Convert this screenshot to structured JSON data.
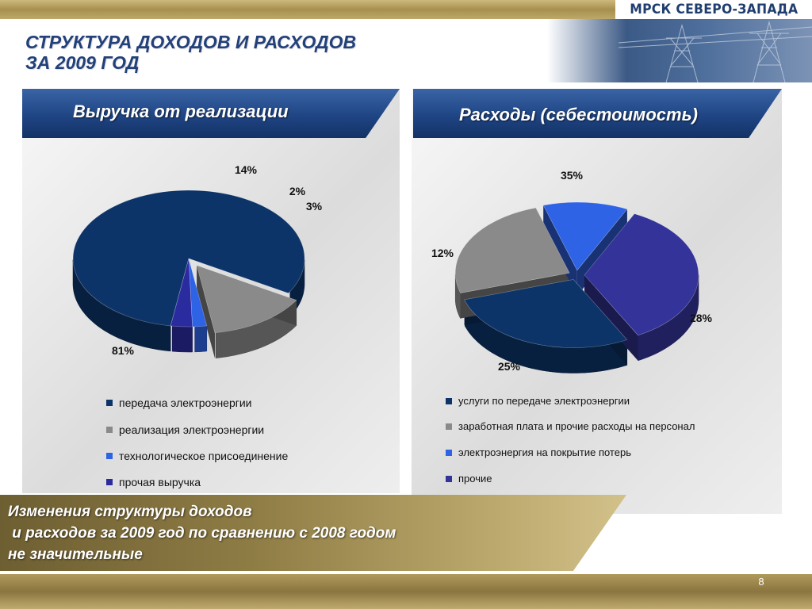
{
  "brand": {
    "name": "МРСК СЕВЕРО-ЗАПАДА"
  },
  "page": {
    "title_line1": "СТРУКТУРА ДОХОДОВ И РАСХОДОВ",
    "title_line2": "ЗА 2009 ГОД",
    "page_number": "8"
  },
  "left_panel": {
    "header": "Выручка от реализации"
  },
  "right_panel": {
    "header": "Расходы (себестоимость)"
  },
  "bottom": {
    "line1": "Изменения структуры доходов",
    "line2": " и расходов за 2009 год по сравнению с 2008 годом",
    "line3": "не значительные"
  },
  "chart_data": [
    {
      "type": "pie",
      "title": "Выручка от реализации",
      "categories": [
        "передача электроэнергии",
        "реализация электроэнергии",
        "технологическое присоединение",
        "прочая выручка"
      ],
      "values": [
        81,
        14,
        2,
        3
      ],
      "labels": [
        "81%",
        "14%",
        "2%",
        "3%"
      ],
      "colors": [
        "#0d3468",
        "#8a8a8a",
        "#2f63e6",
        "#2b2ba0"
      ],
      "exploded": [
        false,
        true,
        false,
        false
      ],
      "legend_position": "bottom"
    },
    {
      "type": "pie",
      "title": "Расходы (себестоимость)",
      "categories": [
        "услуги по передаче электроэнергии",
        "заработная плата и прочие расходы на персонал",
        "электроэнергия на покрытие потерь",
        "прочие"
      ],
      "values": [
        28,
        25,
        12,
        35
      ],
      "labels": [
        "28%",
        "25%",
        "12%",
        "35%"
      ],
      "colors": [
        "#0d3468",
        "#8a8a8a",
        "#2f63e6",
        "#33339a"
      ],
      "exploded": [
        true,
        true,
        true,
        true
      ],
      "legend_position": "bottom"
    }
  ]
}
